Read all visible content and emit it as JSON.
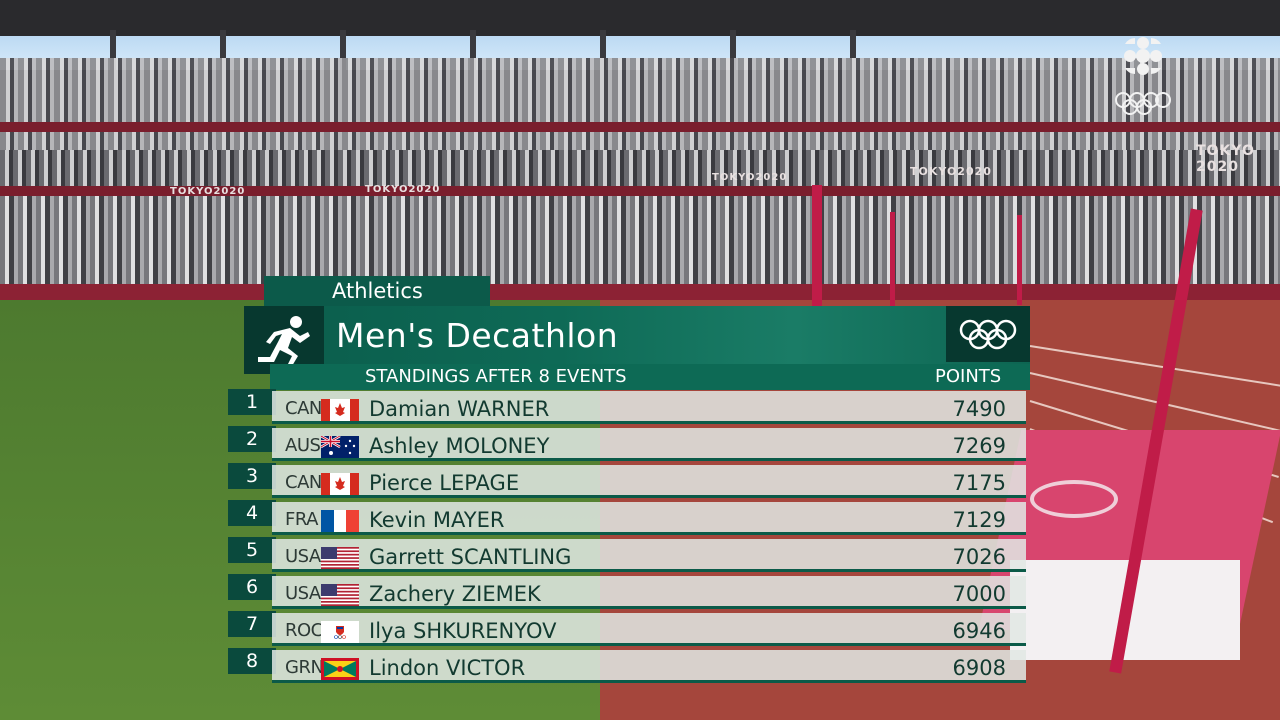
{
  "scene": {
    "broadcaster_logo": "cbc-gem-icon",
    "signage": [
      "TOKYO2020",
      "TOKYO2020",
      "TOKYO2020",
      "TOKYO2020",
      "TOKYO 2020"
    ]
  },
  "graphic": {
    "sport_label": "Athletics",
    "pictogram": "runner-icon",
    "emblem": "olympic-rings-icon",
    "event_title": "Men's Decathlon",
    "subtitle": "STANDINGS AFTER 8 EVENTS",
    "points_header": "POINTS",
    "colors": {
      "primary_green": "#0b5c4b",
      "dark_green": "#07382f",
      "row_bg": "#e1e8e4"
    }
  },
  "standings": [
    {
      "rank": "1",
      "country": "CAN",
      "flag": "canada-flag-icon",
      "name": "Damian WARNER",
      "points": "7490"
    },
    {
      "rank": "2",
      "country": "AUS",
      "flag": "australia-flag-icon",
      "name": "Ashley MOLONEY",
      "points": "7269"
    },
    {
      "rank": "3",
      "country": "CAN",
      "flag": "canada-flag-icon",
      "name": "Pierce LEPAGE",
      "points": "7175"
    },
    {
      "rank": "4",
      "country": "FRA",
      "flag": "france-flag-icon",
      "name": "Kevin MAYER",
      "points": "7129"
    },
    {
      "rank": "5",
      "country": "USA",
      "flag": "usa-flag-icon",
      "name": "Garrett SCANTLING",
      "points": "7026"
    },
    {
      "rank": "6",
      "country": "USA",
      "flag": "usa-flag-icon",
      "name": "Zachery ZIEMEK",
      "points": "7000"
    },
    {
      "rank": "7",
      "country": "ROC",
      "flag": "roc-flag-icon",
      "name": "Ilya SHKURENYOV",
      "points": "6946"
    },
    {
      "rank": "8",
      "country": "GRN",
      "flag": "grenada-flag-icon",
      "name": "Lindon VICTOR",
      "points": "6908"
    }
  ]
}
